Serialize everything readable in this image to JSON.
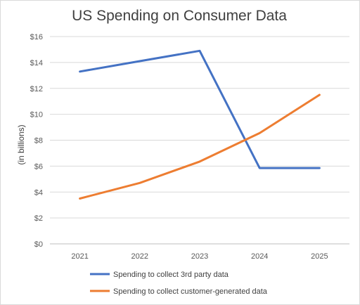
{
  "chart_data": {
    "type": "line",
    "title": "US Spending on Consumer Data",
    "xlabel": "",
    "ylabel": "(in billions)",
    "categories": [
      "2021",
      "2022",
      "2023",
      "2024",
      "2025"
    ],
    "ylim": [
      0,
      16
    ],
    "yticks": [
      0,
      2,
      4,
      6,
      8,
      10,
      12,
      14,
      16
    ],
    "ytick_labels": [
      "$0",
      "$2",
      "$4",
      "$6",
      "$8",
      "$10",
      "$12",
      "$14",
      "$16"
    ],
    "grid": true,
    "legend_position": "bottom",
    "series": [
      {
        "name": "Spending to collect 3rd party data",
        "color": "#4472c4",
        "values": [
          13.3,
          14.1,
          14.9,
          5.85,
          5.85
        ]
      },
      {
        "name": "Spending to collect customer-generated data",
        "color": "#ed7d31",
        "values": [
          3.5,
          4.7,
          6.35,
          8.55,
          11.5
        ]
      }
    ]
  }
}
